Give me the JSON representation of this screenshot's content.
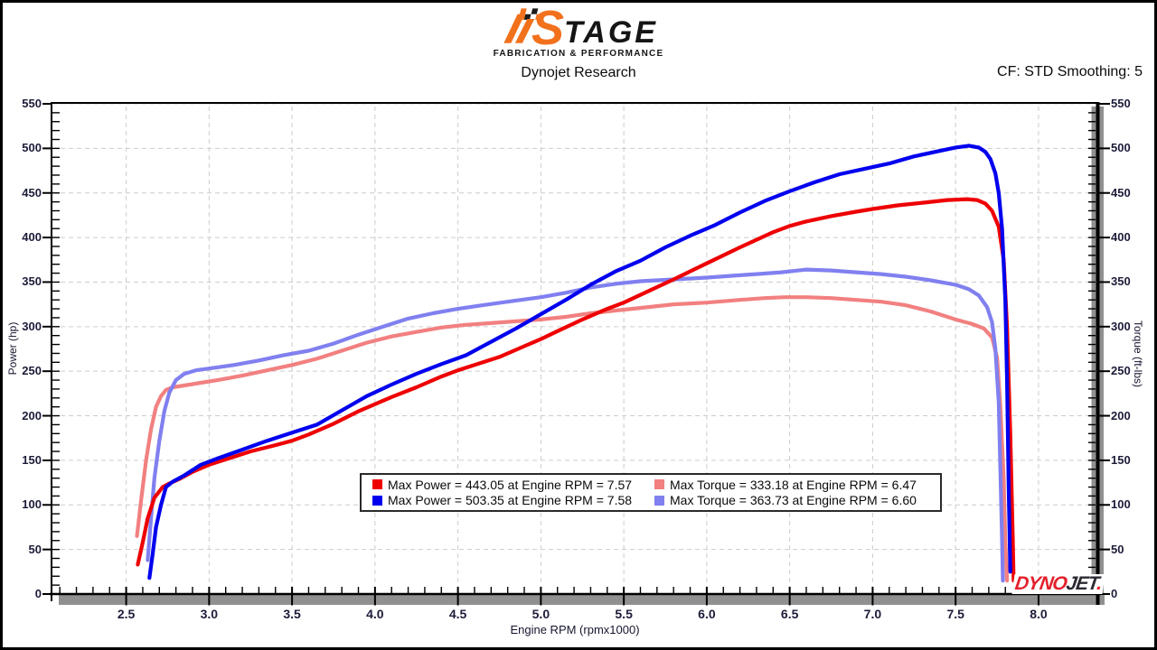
{
  "header": {
    "logo_s": "S",
    "logo_tage": "TAGE",
    "logo_tagline": "FABRICATION & PERFORMANCE",
    "subtitle": "Dynojet Research",
    "cf_text": "CF: STD Smoothing: 5",
    "brand_orange": "#F2711C"
  },
  "watermark": {
    "dyno": "DYNO",
    "jet": "JET",
    "dot": "."
  },
  "chart_data": {
    "type": "line",
    "title": "Dynojet Research",
    "xlabel": "Engine RPM (rpmx1000)",
    "ylabel_left": "Power (hp)",
    "ylabel_right": "Torque (ft-lbs)",
    "xlim": [
      2.05,
      8.36
    ],
    "ylim": [
      0,
      550
    ],
    "grid": "dashed",
    "grid_color": "#cccccc",
    "legend_position": "bottom-center",
    "x_major_ticks": [
      {
        "v": 2.5,
        "label": "2.5"
      },
      {
        "v": 3.0,
        "label": "3.0"
      },
      {
        "v": 3.5,
        "label": "3.5"
      },
      {
        "v": 4.0,
        "label": "4.0"
      },
      {
        "v": 4.5,
        "label": "4.5"
      },
      {
        "v": 5.0,
        "label": "5.0"
      },
      {
        "v": 5.5,
        "label": "5.5"
      },
      {
        "v": 6.0,
        "label": "6.0"
      },
      {
        "v": 6.5,
        "label": "6.5"
      },
      {
        "v": 7.0,
        "label": "7.0"
      },
      {
        "v": 7.5,
        "label": "7.5"
      },
      {
        "v": 8.0,
        "label": "8.0"
      }
    ],
    "y_major_ticks": [
      {
        "v": 0,
        "label": "0"
      },
      {
        "v": 50,
        "label": "50"
      },
      {
        "v": 100,
        "label": "100"
      },
      {
        "v": 150,
        "label": "150"
      },
      {
        "v": 200,
        "label": "200"
      },
      {
        "v": 250,
        "label": "250"
      },
      {
        "v": 300,
        "label": "300"
      },
      {
        "v": 350,
        "label": "350"
      },
      {
        "v": 400,
        "label": "400"
      },
      {
        "v": 450,
        "label": "450"
      },
      {
        "v": 500,
        "label": "500"
      },
      {
        "v": 550,
        "label": "550"
      }
    ],
    "x_minor": {
      "from": 2.1,
      "to": 8.3,
      "step": 0.1
    },
    "y_minor": {
      "from": 10,
      "to": 540,
      "step": 10
    },
    "legend": [
      {
        "label": "Max Power = 443.05 at Engine RPM = 7.57",
        "color": "#EE0000"
      },
      {
        "label": "Max Torque = 333.18 at Engine RPM = 6.47",
        "color": "#F28080"
      },
      {
        "label": "Max Power = 503.35 at Engine RPM = 7.58",
        "color": "#0000EE"
      },
      {
        "label": "Max Torque = 363.73 at Engine RPM = 6.60",
        "color": "#8080F0"
      }
    ],
    "max_values": {
      "power_red": {
        "value": 443.05,
        "rpm": 7.57
      },
      "power_blue": {
        "value": 503.35,
        "rpm": 7.58
      },
      "torque_red": {
        "value": 333.18,
        "rpm": 6.47
      },
      "torque_blue": {
        "value": 363.73,
        "rpm": 6.6
      }
    },
    "series": [
      {
        "name": "torque-run-red",
        "color": "#F28080",
        "width": 4.2,
        "points": [
          [
            2.565,
            65
          ],
          [
            2.59,
            105
          ],
          [
            2.62,
            150
          ],
          [
            2.65,
            185
          ],
          [
            2.68,
            210
          ],
          [
            2.71,
            222
          ],
          [
            2.74,
            229
          ],
          [
            2.78,
            232
          ],
          [
            2.85,
            234
          ],
          [
            2.95,
            237
          ],
          [
            3.05,
            240
          ],
          [
            3.2,
            245
          ],
          [
            3.35,
            251
          ],
          [
            3.5,
            257
          ],
          [
            3.65,
            264
          ],
          [
            3.8,
            273
          ],
          [
            3.95,
            282
          ],
          [
            4.1,
            289
          ],
          [
            4.25,
            294
          ],
          [
            4.4,
            299
          ],
          [
            4.55,
            302
          ],
          [
            4.7,
            304
          ],
          [
            4.85,
            306
          ],
          [
            5.0,
            308
          ],
          [
            5.15,
            311
          ],
          [
            5.3,
            315
          ],
          [
            5.45,
            318
          ],
          [
            5.6,
            321
          ],
          [
            5.8,
            325
          ],
          [
            6.0,
            327
          ],
          [
            6.2,
            330
          ],
          [
            6.35,
            332
          ],
          [
            6.47,
            333
          ],
          [
            6.6,
            333
          ],
          [
            6.75,
            332
          ],
          [
            6.9,
            330
          ],
          [
            7.05,
            328
          ],
          [
            7.2,
            324
          ],
          [
            7.35,
            317
          ],
          [
            7.5,
            308
          ],
          [
            7.6,
            303
          ],
          [
            7.67,
            298
          ],
          [
            7.72,
            288
          ],
          [
            7.75,
            265
          ],
          [
            7.77,
            210
          ],
          [
            7.79,
            130
          ],
          [
            7.8,
            60
          ],
          [
            7.81,
            15
          ]
        ]
      },
      {
        "name": "torque-run-blue",
        "color": "#8080F0",
        "width": 4.2,
        "points": [
          [
            2.63,
            38
          ],
          [
            2.65,
            85
          ],
          [
            2.67,
            130
          ],
          [
            2.7,
            172
          ],
          [
            2.73,
            205
          ],
          [
            2.76,
            226
          ],
          [
            2.8,
            240
          ],
          [
            2.85,
            247
          ],
          [
            2.92,
            251
          ],
          [
            3.0,
            253
          ],
          [
            3.15,
            257
          ],
          [
            3.3,
            262
          ],
          [
            3.45,
            268
          ],
          [
            3.6,
            273
          ],
          [
            3.75,
            281
          ],
          [
            3.9,
            291
          ],
          [
            4.05,
            300
          ],
          [
            4.2,
            309
          ],
          [
            4.35,
            315
          ],
          [
            4.5,
            320
          ],
          [
            4.65,
            324
          ],
          [
            4.8,
            328
          ],
          [
            5.0,
            333
          ],
          [
            5.15,
            338
          ],
          [
            5.3,
            344
          ],
          [
            5.45,
            348
          ],
          [
            5.6,
            351
          ],
          [
            5.8,
            353
          ],
          [
            6.0,
            355
          ],
          [
            6.15,
            357
          ],
          [
            6.3,
            359
          ],
          [
            6.45,
            361
          ],
          [
            6.6,
            364
          ],
          [
            6.75,
            363
          ],
          [
            6.9,
            361
          ],
          [
            7.05,
            359
          ],
          [
            7.2,
            356
          ],
          [
            7.35,
            352
          ],
          [
            7.5,
            347
          ],
          [
            7.58,
            342
          ],
          [
            7.64,
            335
          ],
          [
            7.69,
            322
          ],
          [
            7.72,
            305
          ],
          [
            7.74,
            275
          ],
          [
            7.76,
            215
          ],
          [
            7.77,
            140
          ],
          [
            7.78,
            60
          ],
          [
            7.785,
            15
          ]
        ]
      },
      {
        "name": "power-run-red",
        "color": "#EE0000",
        "width": 4.2,
        "points": [
          [
            2.57,
            33
          ],
          [
            2.6,
            58
          ],
          [
            2.63,
            85
          ],
          [
            2.67,
            108
          ],
          [
            2.72,
            120
          ],
          [
            2.76,
            124
          ],
          [
            2.82,
            129
          ],
          [
            2.9,
            137
          ],
          [
            3.0,
            145
          ],
          [
            3.1,
            151
          ],
          [
            3.25,
            160
          ],
          [
            3.4,
            167
          ],
          [
            3.5,
            172
          ],
          [
            3.6,
            179
          ],
          [
            3.75,
            191
          ],
          [
            3.9,
            205
          ],
          [
            4.0,
            213
          ],
          [
            4.1,
            221
          ],
          [
            4.25,
            232
          ],
          [
            4.4,
            244
          ],
          [
            4.5,
            251
          ],
          [
            4.6,
            257
          ],
          [
            4.75,
            266
          ],
          [
            4.9,
            278
          ],
          [
            5.0,
            286
          ],
          [
            5.1,
            295
          ],
          [
            5.25,
            308
          ],
          [
            5.4,
            320
          ],
          [
            5.5,
            327
          ],
          [
            5.65,
            340
          ],
          [
            5.8,
            353
          ],
          [
            6.0,
            371
          ],
          [
            6.2,
            389
          ],
          [
            6.4,
            406
          ],
          [
            6.5,
            413
          ],
          [
            6.6,
            418
          ],
          [
            6.75,
            424
          ],
          [
            6.9,
            429
          ],
          [
            7.0,
            432
          ],
          [
            7.15,
            436
          ],
          [
            7.3,
            439
          ],
          [
            7.45,
            442
          ],
          [
            7.57,
            443
          ],
          [
            7.63,
            442
          ],
          [
            7.68,
            438
          ],
          [
            7.72,
            430
          ],
          [
            7.76,
            412
          ],
          [
            7.79,
            375
          ],
          [
            7.81,
            300
          ],
          [
            7.83,
            180
          ],
          [
            7.845,
            60
          ],
          [
            7.85,
            15
          ]
        ]
      },
      {
        "name": "power-run-blue",
        "color": "#0000EE",
        "width": 4.2,
        "points": [
          [
            2.64,
            18
          ],
          [
            2.66,
            45
          ],
          [
            2.68,
            75
          ],
          [
            2.71,
            100
          ],
          [
            2.74,
            120
          ],
          [
            2.78,
            126
          ],
          [
            2.85,
            133
          ],
          [
            2.95,
            145
          ],
          [
            3.05,
            152
          ],
          [
            3.2,
            162
          ],
          [
            3.35,
            172
          ],
          [
            3.5,
            181
          ],
          [
            3.65,
            190
          ],
          [
            3.8,
            206
          ],
          [
            3.95,
            222
          ],
          [
            4.1,
            235
          ],
          [
            4.25,
            247
          ],
          [
            4.4,
            258
          ],
          [
            4.55,
            268
          ],
          [
            4.7,
            283
          ],
          [
            4.85,
            298
          ],
          [
            5.0,
            314
          ],
          [
            5.15,
            330
          ],
          [
            5.3,
            347
          ],
          [
            5.45,
            362
          ],
          [
            5.6,
            374
          ],
          [
            5.75,
            389
          ],
          [
            5.9,
            402
          ],
          [
            6.05,
            414
          ],
          [
            6.2,
            428
          ],
          [
            6.35,
            441
          ],
          [
            6.5,
            452
          ],
          [
            6.65,
            462
          ],
          [
            6.8,
            471
          ],
          [
            6.95,
            477
          ],
          [
            7.1,
            483
          ],
          [
            7.25,
            491
          ],
          [
            7.4,
            497
          ],
          [
            7.5,
            501
          ],
          [
            7.58,
            503
          ],
          [
            7.64,
            501
          ],
          [
            7.68,
            496
          ],
          [
            7.71,
            488
          ],
          [
            7.74,
            472
          ],
          [
            7.76,
            450
          ],
          [
            7.78,
            410
          ],
          [
            7.8,
            330
          ],
          [
            7.81,
            240
          ],
          [
            7.82,
            120
          ],
          [
            7.83,
            25
          ]
        ]
      }
    ]
  }
}
